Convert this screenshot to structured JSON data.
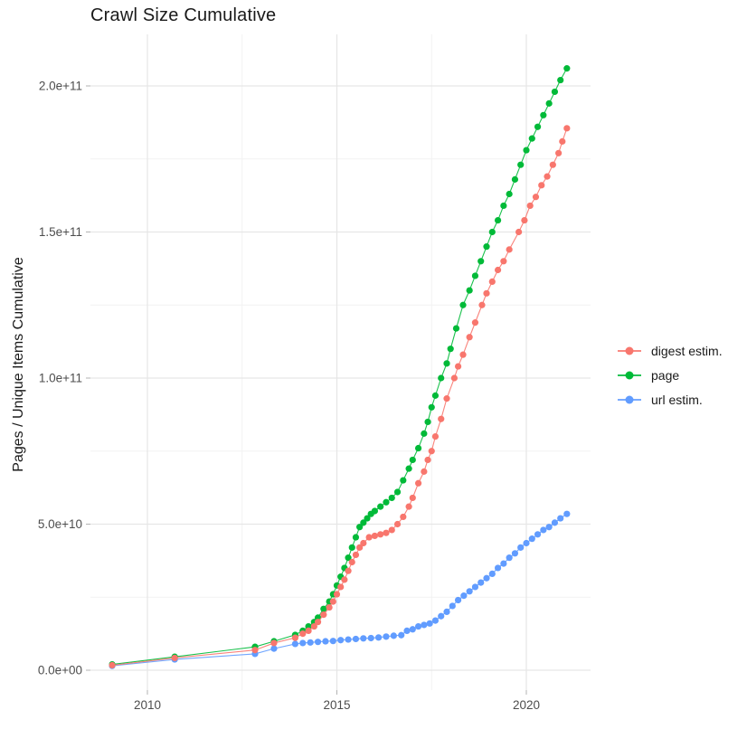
{
  "page": {
    "title": "Crawl Size Cumulative",
    "background": "#ffffff"
  },
  "chart_data": {
    "type": "scatter",
    "title": "Crawl Size Cumulative",
    "xlabel": "",
    "ylabel": "Pages / Unique Items Cumulative",
    "grid": "on",
    "legend_position": "right",
    "x_axis": {
      "tick_values": [
        2010,
        2015,
        2020
      ],
      "tick_labels": [
        "2010",
        "2015",
        "2020"
      ],
      "minor_gridlines": [
        2012.5,
        2017.5
      ],
      "range": [
        2008.5,
        2021.7
      ]
    },
    "y_axis": {
      "tick_values": [
        0,
        50000000000.0,
        100000000000.0,
        150000000000.0,
        200000000000.0
      ],
      "tick_labels": [
        "0.0e+00",
        "5.0e+10",
        "1.0e+11",
        "1.5e+11",
        "2.0e+11"
      ],
      "minor_gridlines": [
        25000000000.0,
        75000000000.0,
        125000000000.0,
        175000000000.0
      ],
      "range": [
        0,
        223000000000.0
      ]
    },
    "colors": {
      "digest": "#F8766D",
      "page": "#00BA38",
      "url": "#619CFF"
    },
    "series": [
      {
        "name": "digest estim.",
        "color": "#F8766D",
        "points": [
          [
            2009.07,
            1700000000.0
          ],
          [
            2010.72,
            4200000000.0
          ],
          [
            2012.84,
            6900000000.0
          ],
          [
            2013.34,
            9300000000.0
          ],
          [
            2013.9,
            11100000000.0
          ],
          [
            2014.1,
            12500000000.0
          ],
          [
            2014.25,
            13500000000.0
          ],
          [
            2014.4,
            15000000000.0
          ],
          [
            2014.5,
            16500000000.0
          ],
          [
            2014.65,
            19000000000.0
          ],
          [
            2014.8,
            21500000000.0
          ],
          [
            2014.9,
            23500000000.0
          ],
          [
            2015.0,
            26000000000.0
          ],
          [
            2015.1,
            28500000000.0
          ],
          [
            2015.2,
            31000000000.0
          ],
          [
            2015.3,
            34000000000.0
          ],
          [
            2015.4,
            37000000000.0
          ],
          [
            2015.5,
            39500000000.0
          ],
          [
            2015.6,
            42000000000.0
          ],
          [
            2015.7,
            43500000000.0
          ],
          [
            2015.85,
            45500000000.0
          ],
          [
            2016.0,
            46000000000.0
          ],
          [
            2016.15,
            46500000000.0
          ],
          [
            2016.3,
            47000000000.0
          ],
          [
            2016.45,
            48000000000.0
          ],
          [
            2016.6,
            50000000000.0
          ],
          [
            2016.75,
            52500000000.0
          ],
          [
            2016.9,
            56000000000.0
          ],
          [
            2017.0,
            59000000000.0
          ],
          [
            2017.15,
            64000000000.0
          ],
          [
            2017.3,
            68000000000.0
          ],
          [
            2017.4,
            72000000000.0
          ],
          [
            2017.5,
            75000000000.0
          ],
          [
            2017.6,
            80000000000.0
          ],
          [
            2017.75,
            86000000000.0
          ],
          [
            2017.9,
            93000000000.0
          ],
          [
            2018.1,
            100000000000.0
          ],
          [
            2018.2,
            104000000000.0
          ],
          [
            2018.33,
            108000000000.0
          ],
          [
            2018.5,
            114000000000.0
          ],
          [
            2018.65,
            119000000000.0
          ],
          [
            2018.83,
            125000000000.0
          ],
          [
            2018.95,
            129000000000.0
          ],
          [
            2019.1,
            133000000000.0
          ],
          [
            2019.25,
            137000000000.0
          ],
          [
            2019.4,
            140000000000.0
          ],
          [
            2019.55,
            144000000000.0
          ],
          [
            2019.8,
            150000000000.0
          ],
          [
            2019.95,
            154000000000.0
          ],
          [
            2020.1,
            159000000000.0
          ],
          [
            2020.25,
            162000000000.0
          ],
          [
            2020.4,
            166000000000.0
          ],
          [
            2020.55,
            169000000000.0
          ],
          [
            2020.7,
            173000000000.0
          ],
          [
            2020.85,
            177000000000.0
          ],
          [
            2020.95,
            181000000000.0
          ],
          [
            2021.07,
            185500000000.0
          ]
        ]
      },
      {
        "name": "page",
        "color": "#00BA38",
        "points": [
          [
            2009.07,
            2000000000.0
          ],
          [
            2010.72,
            4600000000.0
          ],
          [
            2012.84,
            8000000000.0
          ],
          [
            2013.34,
            9900000000.0
          ],
          [
            2013.9,
            12100000000.0
          ],
          [
            2014.1,
            13500000000.0
          ],
          [
            2014.25,
            15000000000.0
          ],
          [
            2014.4,
            16500000000.0
          ],
          [
            2014.5,
            18000000000.0
          ],
          [
            2014.65,
            21000000000.0
          ],
          [
            2014.8,
            23500000000.0
          ],
          [
            2014.9,
            26000000000.0
          ],
          [
            2015.0,
            29000000000.0
          ],
          [
            2015.1,
            32000000000.0
          ],
          [
            2015.2,
            35000000000.0
          ],
          [
            2015.3,
            38500000000.0
          ],
          [
            2015.4,
            42000000000.0
          ],
          [
            2015.5,
            45500000000.0
          ],
          [
            2015.6,
            49000000000.0
          ],
          [
            2015.7,
            50500000000.0
          ],
          [
            2015.8,
            52000000000.0
          ],
          [
            2015.9,
            53500000000.0
          ],
          [
            2016.0,
            54500000000.0
          ],
          [
            2016.15,
            56000000000.0
          ],
          [
            2016.3,
            57500000000.0
          ],
          [
            2016.45,
            59000000000.0
          ],
          [
            2016.6,
            61000000000.0
          ],
          [
            2016.75,
            65000000000.0
          ],
          [
            2016.9,
            69000000000.0
          ],
          [
            2017.0,
            72000000000.0
          ],
          [
            2017.15,
            76000000000.0
          ],
          [
            2017.3,
            81000000000.0
          ],
          [
            2017.4,
            85000000000.0
          ],
          [
            2017.5,
            90000000000.0
          ],
          [
            2017.6,
            94000000000.0
          ],
          [
            2017.75,
            100000000000.0
          ],
          [
            2017.9,
            105000000000.0
          ],
          [
            2018.0,
            110000000000.0
          ],
          [
            2018.15,
            117000000000.0
          ],
          [
            2018.33,
            125000000000.0
          ],
          [
            2018.5,
            130000000000.0
          ],
          [
            2018.65,
            135000000000.0
          ],
          [
            2018.8,
            140000000000.0
          ],
          [
            2018.95,
            145000000000.0
          ],
          [
            2019.1,
            150000000000.0
          ],
          [
            2019.25,
            154000000000.0
          ],
          [
            2019.4,
            159000000000.0
          ],
          [
            2019.55,
            163000000000.0
          ],
          [
            2019.7,
            168000000000.0
          ],
          [
            2019.85,
            173000000000.0
          ],
          [
            2020.0,
            178000000000.0
          ],
          [
            2020.15,
            182000000000.0
          ],
          [
            2020.3,
            186000000000.0
          ],
          [
            2020.45,
            190000000000.0
          ],
          [
            2020.6,
            194000000000.0
          ],
          [
            2020.75,
            198000000000.0
          ],
          [
            2020.9,
            202000000000.0
          ],
          [
            2021.07,
            206000000000.0
          ]
        ]
      },
      {
        "name": "url estim.",
        "color": "#619CFF",
        "points": [
          [
            2009.07,
            1500000000.0
          ],
          [
            2010.72,
            3700000000.0
          ],
          [
            2012.84,
            5600000000.0
          ],
          [
            2013.34,
            7400000000.0
          ],
          [
            2013.9,
            9000000000.0
          ],
          [
            2014.1,
            9300000000.0
          ],
          [
            2014.3,
            9500000000.0
          ],
          [
            2014.5,
            9700000000.0
          ],
          [
            2014.7,
            9900000000.0
          ],
          [
            2014.9,
            10000000000.0
          ],
          [
            2015.1,
            10300000000.0
          ],
          [
            2015.3,
            10500000000.0
          ],
          [
            2015.5,
            10700000000.0
          ],
          [
            2015.7,
            10900000000.0
          ],
          [
            2015.9,
            11000000000.0
          ],
          [
            2016.1,
            11200000000.0
          ],
          [
            2016.3,
            11500000000.0
          ],
          [
            2016.5,
            11800000000.0
          ],
          [
            2016.7,
            12000000000.0
          ],
          [
            2016.85,
            13500000000.0
          ],
          [
            2017.0,
            14000000000.0
          ],
          [
            2017.15,
            15000000000.0
          ],
          [
            2017.3,
            15500000000.0
          ],
          [
            2017.45,
            16000000000.0
          ],
          [
            2017.6,
            17000000000.0
          ],
          [
            2017.75,
            18500000000.0
          ],
          [
            2017.9,
            20000000000.0
          ],
          [
            2018.05,
            22000000000.0
          ],
          [
            2018.2,
            24000000000.0
          ],
          [
            2018.35,
            25500000000.0
          ],
          [
            2018.5,
            27000000000.0
          ],
          [
            2018.65,
            28500000000.0
          ],
          [
            2018.8,
            30000000000.0
          ],
          [
            2018.95,
            31500000000.0
          ],
          [
            2019.1,
            33000000000.0
          ],
          [
            2019.25,
            35000000000.0
          ],
          [
            2019.4,
            36500000000.0
          ],
          [
            2019.55,
            38500000000.0
          ],
          [
            2019.7,
            40000000000.0
          ],
          [
            2019.85,
            42000000000.0
          ],
          [
            2020.0,
            43500000000.0
          ],
          [
            2020.15,
            45000000000.0
          ],
          [
            2020.3,
            46500000000.0
          ],
          [
            2020.45,
            48000000000.0
          ],
          [
            2020.6,
            49000000000.0
          ],
          [
            2020.75,
            50500000000.0
          ],
          [
            2020.9,
            52000000000.0
          ],
          [
            2021.07,
            53500000000.0
          ]
        ]
      }
    ]
  },
  "legend": {
    "items": [
      {
        "label": "digest estim.",
        "color": "#F8766D"
      },
      {
        "label": "page",
        "color": "#00BA38"
      },
      {
        "label": "url estim.",
        "color": "#619CFF"
      }
    ]
  }
}
